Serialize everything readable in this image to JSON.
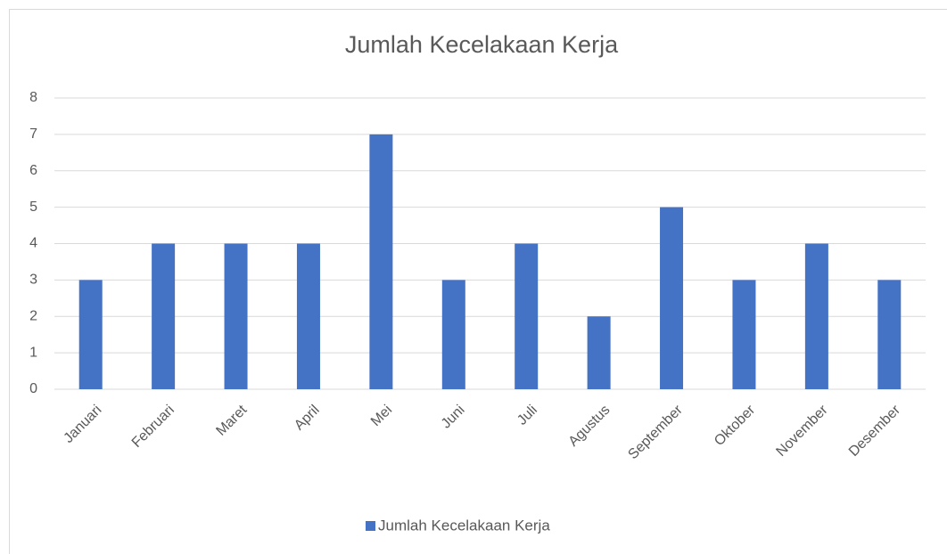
{
  "chart_data": {
    "type": "bar",
    "title": "Jumlah Kecelakaan Kerja",
    "categories": [
      "Januari",
      "Februari",
      "Maret",
      "April",
      "Mei",
      "Juni",
      "Juli",
      "Agustus",
      "September",
      "Oktober",
      "November",
      "Desember"
    ],
    "series": [
      {
        "name": "Jumlah Kecelakaan Kerja",
        "color": "#4472c4",
        "values": [
          3,
          4,
          4,
          4,
          7,
          3,
          4,
          2,
          5,
          3,
          4,
          3
        ]
      }
    ],
    "ylim": [
      0,
      8
    ],
    "yticks": [
      0,
      1,
      2,
      3,
      4,
      5,
      6,
      7,
      8
    ],
    "grid": true,
    "legend": "bottom"
  }
}
